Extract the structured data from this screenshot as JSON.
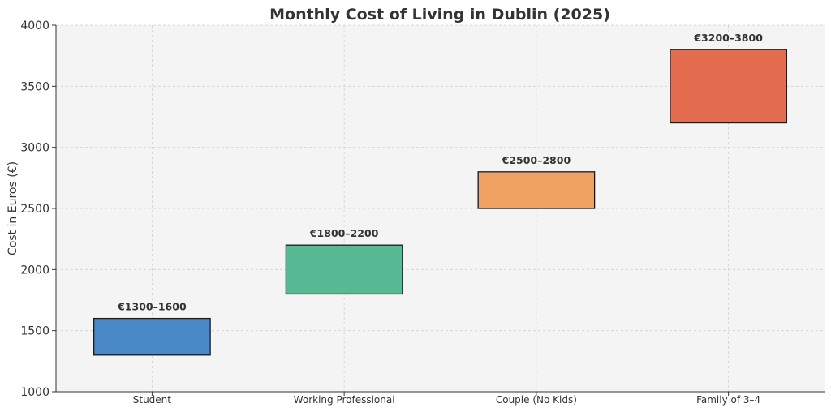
{
  "chart_data": {
    "type": "bar",
    "title": "Monthly Cost of Living in Dublin (2025)",
    "xlabel": "",
    "ylabel": "Cost in Euros (€)",
    "ylim": [
      1000,
      4000
    ],
    "yticks": [
      1000,
      1500,
      2000,
      2500,
      3000,
      3500,
      4000
    ],
    "grid": true,
    "categories": [
      "Student",
      "Working Professional",
      "Couple (No Kids)",
      "Family of 3–4"
    ],
    "ranges": [
      {
        "low": 1300,
        "high": 1600,
        "label": "€1300–1600",
        "color": "#4a89c8"
      },
      {
        "low": 1800,
        "high": 2200,
        "label": "€1800–2200",
        "color": "#58b995"
      },
      {
        "low": 2500,
        "high": 2800,
        "label": "€2500–2800",
        "color": "#f0a262"
      },
      {
        "low": 3200,
        "high": 3800,
        "label": "€3200–3800",
        "color": "#e46d50"
      }
    ]
  }
}
